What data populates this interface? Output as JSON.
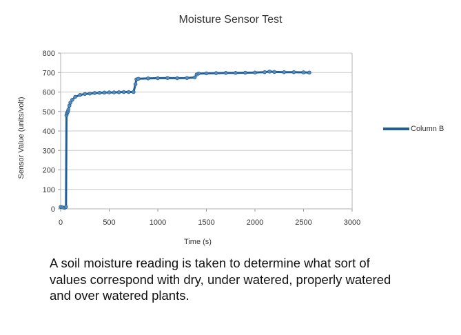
{
  "chart_data": {
    "type": "scatter",
    "title": "Moisture Sensor Test",
    "xlabel": "Time (s)",
    "ylabel": "Sensor Value (units/volt)",
    "xlim": [
      0,
      3000
    ],
    "ylim": [
      0,
      800
    ],
    "xticks": [
      0,
      500,
      1000,
      1500,
      2000,
      2500,
      3000
    ],
    "yticks": [
      0,
      100,
      200,
      300,
      400,
      500,
      600,
      700,
      800
    ],
    "grid": true,
    "legend_position": "right",
    "series": [
      {
        "name": "Column B",
        "color": "#1f5f99",
        "x": [
          0,
          20,
          40,
          55,
          60,
          65,
          70,
          75,
          80,
          90,
          100,
          120,
          150,
          200,
          250,
          300,
          350,
          400,
          450,
          500,
          550,
          600,
          650,
          700,
          750,
          770,
          780,
          800,
          900,
          1000,
          1100,
          1200,
          1300,
          1380,
          1400,
          1420,
          1500,
          1600,
          1700,
          1800,
          1900,
          2000,
          2100,
          2150,
          2200,
          2300,
          2400,
          2500,
          2560
        ],
        "y": [
          10,
          8,
          5,
          10,
          480,
          490,
          495,
          500,
          510,
          530,
          545,
          560,
          575,
          585,
          590,
          592,
          595,
          596,
          597,
          598,
          598,
          599,
          600,
          600,
          600,
          640,
          665,
          668,
          670,
          671,
          672,
          671,
          672,
          675,
          690,
          695,
          696,
          697,
          698,
          698,
          699,
          700,
          702,
          705,
          703,
          702,
          702,
          701,
          700
        ]
      }
    ]
  },
  "caption": "A soil moisture reading is taken to determine what sort of values correspond with dry, under watered, properly watered and over watered plants."
}
